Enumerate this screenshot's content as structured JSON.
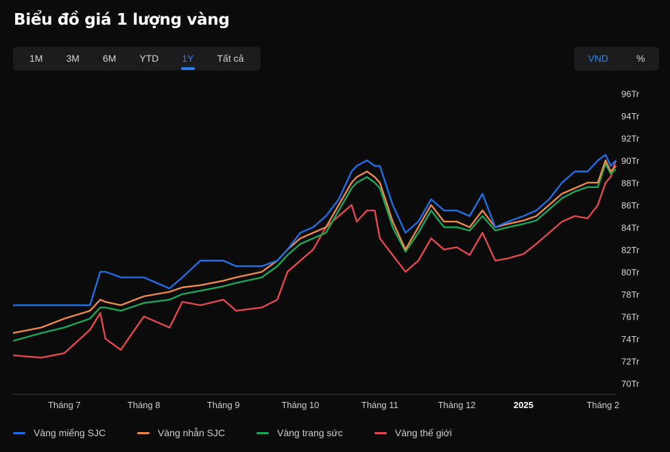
{
  "title": "Biểu đồ giá 1 lượng vàng",
  "ranges": {
    "items": [
      {
        "label": "1M",
        "key": "1m"
      },
      {
        "label": "3M",
        "key": "3m"
      },
      {
        "label": "6M",
        "key": "6m"
      },
      {
        "label": "YTD",
        "key": "ytd"
      },
      {
        "label": "1Y",
        "key": "1y"
      },
      {
        "label": "Tất cả",
        "key": "all"
      }
    ],
    "selected": "1Y"
  },
  "units": {
    "items": [
      {
        "label": "VND",
        "key": "vnd"
      },
      {
        "label": "%",
        "key": "percent"
      }
    ],
    "selected": "VND"
  },
  "colors": {
    "background": "#0b0b0c",
    "accent": "#2f80ed",
    "sjc_bar": "#1f6fe6",
    "sjc_ring": "#f08a4b",
    "jewelry": "#18a85a",
    "world": "#e5484d"
  },
  "chart_data": {
    "type": "line",
    "x": [
      "2024-06-20",
      "2024-07-01",
      "2024-07-10",
      "2024-07-20",
      "2024-07-24",
      "2024-07-26",
      "2024-08-01",
      "2024-08-10",
      "2024-08-20",
      "2024-08-25",
      "2024-09-01",
      "2024-09-10",
      "2024-09-15",
      "2024-09-25",
      "2024-10-01",
      "2024-10-05",
      "2024-10-10",
      "2024-10-15",
      "2024-10-20",
      "2024-10-25",
      "2024-10-30",
      "2024-11-01",
      "2024-11-05",
      "2024-11-08",
      "2024-11-10",
      "2024-11-15",
      "2024-11-20",
      "2024-11-25",
      "2024-11-30",
      "2024-12-05",
      "2024-12-10",
      "2024-12-15",
      "2024-12-20",
      "2024-12-25",
      "2024-12-30",
      "2025-01-05",
      "2025-01-10",
      "2025-01-15",
      "2025-01-20",
      "2025-01-25",
      "2025-01-30",
      "2025-02-03",
      "2025-02-06",
      "2025-02-08",
      "2025-02-10"
    ],
    "series": [
      {
        "name": "Vàng miếng SJC",
        "color_key": "sjc_bar",
        "values": [
          77.0,
          77.0,
          77.0,
          77.0,
          80.0,
          80.0,
          79.5,
          79.5,
          78.5,
          79.5,
          81.0,
          81.0,
          80.5,
          80.5,
          81.0,
          82.0,
          83.5,
          84.0,
          85.0,
          86.5,
          89.0,
          89.5,
          90.0,
          89.5,
          89.5,
          86.0,
          83.5,
          84.5,
          86.5,
          85.5,
          85.5,
          85.0,
          87.0,
          84.0,
          84.5,
          85.0,
          85.5,
          86.5,
          88.0,
          89.0,
          89.0,
          90.0,
          90.5,
          89.5,
          90.0
        ]
      },
      {
        "name": "Vàng nhẫn SJC",
        "color_key": "sjc_ring",
        "values": [
          74.5,
          75.0,
          75.8,
          76.5,
          77.5,
          77.3,
          77.0,
          77.8,
          78.2,
          78.6,
          78.8,
          79.2,
          79.5,
          80.0,
          81.0,
          82.0,
          83.0,
          83.5,
          84.0,
          86.0,
          88.0,
          88.5,
          89.0,
          88.5,
          88.0,
          84.5,
          82.0,
          84.0,
          86.0,
          84.5,
          84.5,
          84.0,
          85.5,
          84.0,
          84.3,
          84.6,
          85.0,
          86.0,
          87.0,
          87.5,
          88.0,
          88.0,
          90.0,
          89.0,
          89.5
        ]
      },
      {
        "name": "Vàng trang sức",
        "color_key": "jewelry",
        "values": [
          73.8,
          74.5,
          75.0,
          75.8,
          76.8,
          76.8,
          76.5,
          77.2,
          77.5,
          78.0,
          78.3,
          78.7,
          79.0,
          79.5,
          80.5,
          81.5,
          82.5,
          83.0,
          83.5,
          85.5,
          87.5,
          88.0,
          88.5,
          88.0,
          87.5,
          84.0,
          81.8,
          83.5,
          85.5,
          84.0,
          84.0,
          83.7,
          85.0,
          83.7,
          84.0,
          84.3,
          84.6,
          85.6,
          86.6,
          87.2,
          87.6,
          87.6,
          89.7,
          88.8,
          89.2
        ]
      },
      {
        "name": "Vàng thế giới",
        "color_key": "world",
        "values": [
          72.5,
          72.3,
          72.7,
          74.8,
          76.3,
          74.0,
          73.0,
          76.0,
          75.0,
          77.3,
          77.0,
          77.5,
          76.5,
          76.8,
          77.5,
          80.0,
          81.0,
          82.0,
          84.0,
          85.0,
          86.0,
          84.5,
          85.5,
          85.5,
          83.0,
          81.5,
          80.0,
          81.0,
          83.0,
          82.0,
          82.2,
          81.5,
          83.5,
          81.0,
          81.2,
          81.6,
          82.5,
          83.5,
          84.5,
          85.0,
          84.8,
          86.0,
          88.0,
          88.5,
          90.0
        ]
      }
    ],
    "xlabel": "",
    "ylabel": "",
    "ylim": [
      69,
      97
    ],
    "y_ticks": [
      96,
      94,
      92,
      90,
      88,
      86,
      84,
      82,
      80,
      78,
      76,
      74,
      72,
      70
    ],
    "y_tick_suffix": "Tr",
    "x_ticks": [
      {
        "label": "Tháng 7",
        "date": "2024-07-10",
        "bold": false
      },
      {
        "label": "Tháng 8",
        "date": "2024-08-10",
        "bold": false
      },
      {
        "label": "Tháng 9",
        "date": "2024-09-10",
        "bold": false
      },
      {
        "label": "Tháng 10",
        "date": "2024-10-10",
        "bold": false
      },
      {
        "label": "Tháng 11",
        "date": "2024-11-10",
        "bold": false
      },
      {
        "label": "Tháng 12",
        "date": "2024-12-10",
        "bold": false
      },
      {
        "label": "2025",
        "date": "2025-01-05",
        "bold": true
      },
      {
        "label": "Tháng 2",
        "date": "2025-02-05",
        "bold": false
      }
    ],
    "legend_position": "bottom",
    "grid": false
  }
}
